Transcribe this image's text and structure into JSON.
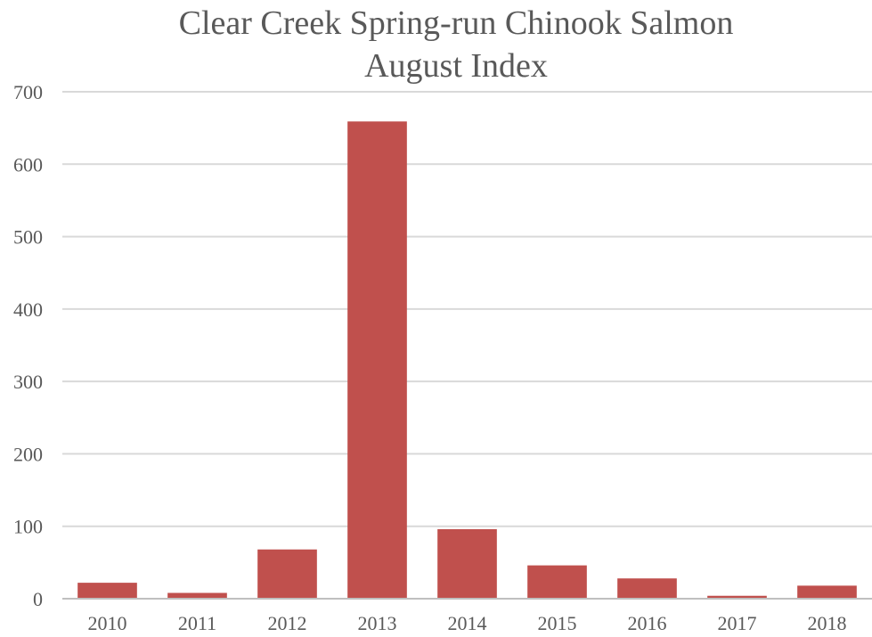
{
  "chart_data": {
    "type": "bar",
    "title_lines": [
      "Clear Creek Spring-run Chinook Salmon",
      "August Index"
    ],
    "xlabel": "",
    "ylabel": "",
    "categories": [
      "2010",
      "2011",
      "2012",
      "2013",
      "2014",
      "2015",
      "2016",
      "2017",
      "2018"
    ],
    "values": [
      22,
      8,
      68,
      659,
      96,
      46,
      28,
      4,
      18
    ],
    "ylim": [
      0,
      700
    ],
    "yticks": [
      "0",
      "100",
      "200",
      "300",
      "400",
      "500",
      "600",
      "700"
    ],
    "grid": true,
    "legend": "none",
    "bar_color": "#c0504d"
  }
}
